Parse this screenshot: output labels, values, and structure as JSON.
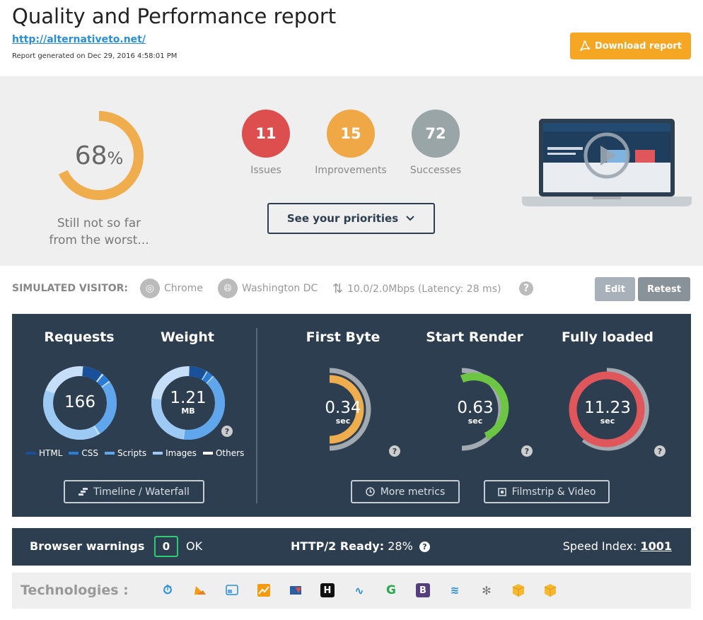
{
  "header": {
    "title": "Quality and Performance report",
    "url": "http://alternativeto.net/",
    "generated": "Report generated on Dec 29, 2016 4:58:01 PM",
    "download_label": "Download report"
  },
  "summary": {
    "score_value": "68",
    "score_unit": "%",
    "score_fraction": 0.68,
    "score_caption_line1": "Still not so far",
    "score_caption_line2": "from the worst...",
    "issues_count": "11",
    "issues_label": "Issues",
    "improvements_count": "15",
    "improvements_label": "Improvements",
    "successes_count": "72",
    "successes_label": "Successes",
    "priorities_label": "See your priorities",
    "colors": {
      "issues": "#dd4f4f",
      "improvements": "#f0a846",
      "successes": "#9aa5a8",
      "gauge": "#f0ad4e"
    }
  },
  "visitor": {
    "title": "SIMULATED VISITOR:",
    "browser": "Chrome",
    "location": "Washington DC",
    "connection": "10.0/2.0Mbps (Latency: 28 ms)",
    "edit_label": "Edit",
    "retest_label": "Retest"
  },
  "metrics": {
    "requests": {
      "title": "Requests",
      "value": "166"
    },
    "weight": {
      "title": "Weight",
      "value": "1.21",
      "unit": "MB"
    },
    "first_byte": {
      "title": "First Byte",
      "value": "0.34",
      "unit": "sec",
      "color": "#f0ad4e"
    },
    "start_render": {
      "title": "Start Render",
      "value": "0.63",
      "unit": "sec",
      "color": "#6cc644"
    },
    "fully_loaded": {
      "title": "Fully loaded",
      "value": "11.23",
      "unit": "sec",
      "color": "#e0575b"
    },
    "legend": {
      "html": "HTML",
      "css": "CSS",
      "scripts": "Scripts",
      "images": "Images",
      "others": "Others"
    },
    "timeline_label": "Timeline / Waterfall",
    "more_metrics_label": "More metrics",
    "filmstrip_label": "Filmstrip & Video"
  },
  "warnings": {
    "title": "Browser warnings",
    "count": "0",
    "status": "OK",
    "http2_label": "HTTP/2 Ready:",
    "http2_value": "28%",
    "speed_index_label": "Speed Index:",
    "speed_index_value": "1001"
  },
  "technologies": {
    "title": "Technologies :"
  }
}
